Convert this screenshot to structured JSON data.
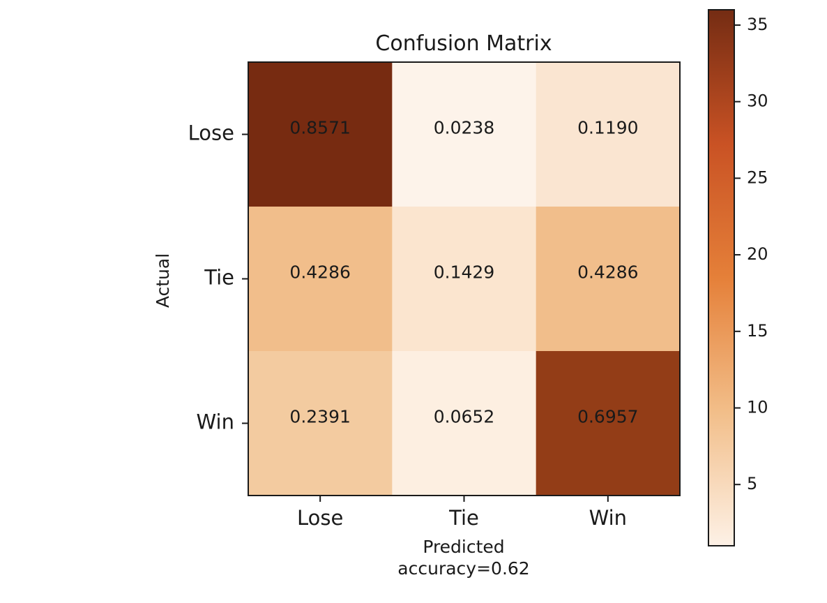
{
  "chart_data": {
    "type": "heatmap",
    "title": "Confusion Matrix",
    "xlabel": "Predicted",
    "xlabel_note": "accuracy=0.62",
    "ylabel": "Actual",
    "x_categories": [
      "Lose",
      "Tie",
      "Win"
    ],
    "y_categories": [
      "Lose",
      "Tie",
      "Win"
    ],
    "values": [
      [
        0.8571,
        0.0238,
        0.119
      ],
      [
        0.4286,
        0.1429,
        0.4286
      ],
      [
        0.2391,
        0.0652,
        0.6957
      ]
    ],
    "value_labels": [
      [
        "0.8571",
        "0.0238",
        "0.1190"
      ],
      [
        "0.4286",
        "0.1429",
        "0.4286"
      ],
      [
        "0.2391",
        "0.0652",
        "0.6957"
      ]
    ],
    "cell_colors": [
      [
        "#772b11",
        "#fdf3ea",
        "#fae5d1"
      ],
      [
        "#f1be8b",
        "#fbe5cf",
        "#f1be8b"
      ],
      [
        "#f3cba0",
        "#fdefe1",
        "#933d17"
      ]
    ],
    "colorbar": {
      "colormap": "Oranges-like",
      "range": [
        1,
        36
      ],
      "ticks": [
        5,
        10,
        15,
        20,
        25,
        30,
        35
      ],
      "tick_labels": [
        "5",
        "10",
        "15",
        "20",
        "25",
        "30",
        "35"
      ],
      "stops": [
        "#fdf1e6",
        "#f2be89",
        "#e58039",
        "#c95224",
        "#742c13"
      ]
    }
  }
}
